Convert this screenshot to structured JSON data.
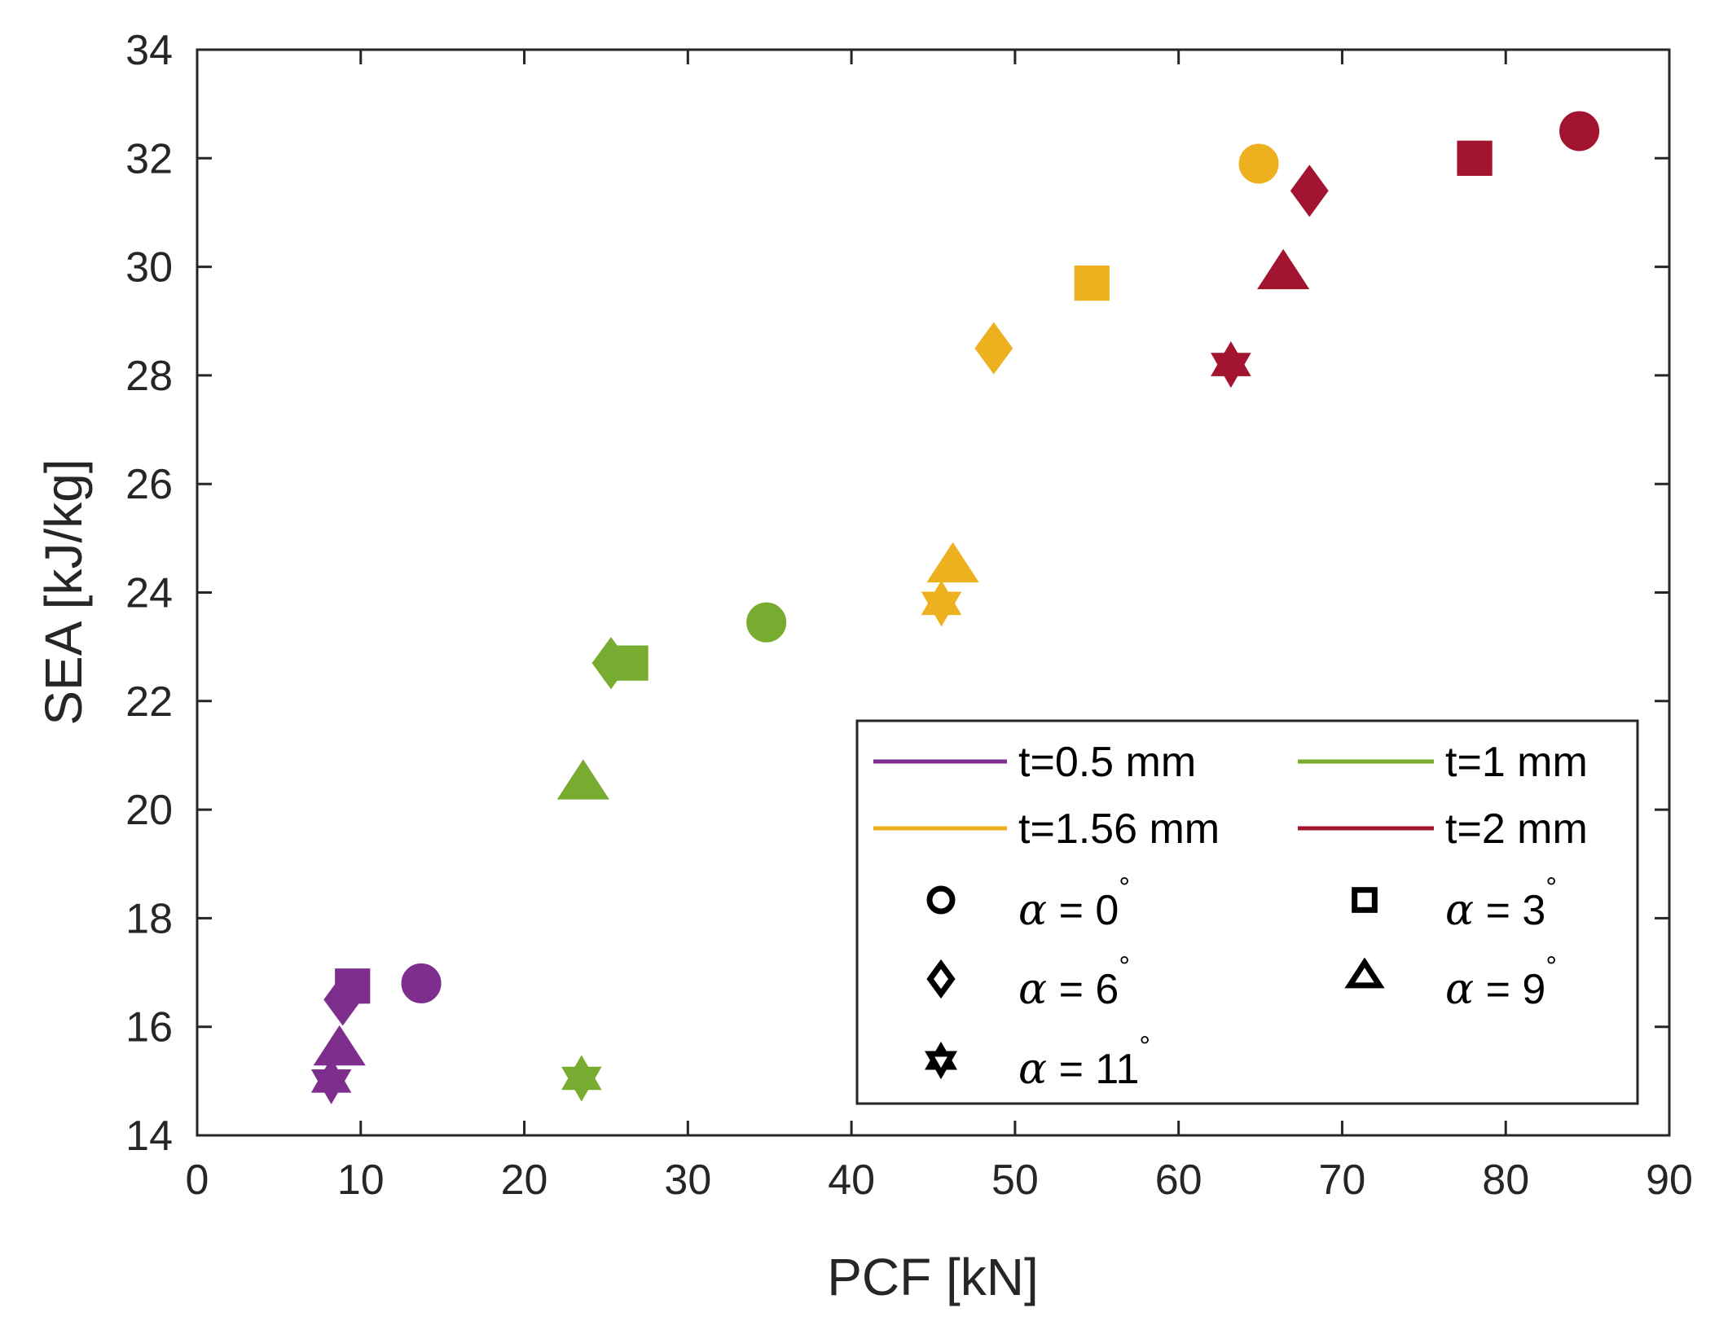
{
  "chart_data": {
    "type": "scatter",
    "xlabel": "PCF [kN]",
    "ylabel": "SEA [kJ/kg]",
    "xlim": [
      0,
      90
    ],
    "ylim": [
      14,
      34
    ],
    "xticks": [
      0,
      10,
      20,
      30,
      40,
      50,
      60,
      70,
      80,
      90
    ],
    "yticks": [
      14,
      16,
      18,
      20,
      22,
      24,
      26,
      28,
      30,
      32,
      34
    ],
    "grid": false,
    "legend_position": "bottom-right",
    "series": [
      {
        "name": "t=0.5 mm",
        "color": "#7E2F8E",
        "points": [
          {
            "alpha": 0,
            "marker": "circle",
            "x": 13.7,
            "y": 16.8
          },
          {
            "alpha": 3,
            "marker": "square",
            "x": 9.5,
            "y": 16.75
          },
          {
            "alpha": 6,
            "marker": "diamond",
            "x": 8.9,
            "y": 16.5
          },
          {
            "alpha": 9,
            "marker": "triangle",
            "x": 8.7,
            "y": 15.6
          },
          {
            "alpha": 11,
            "marker": "hexagram",
            "x": 8.2,
            "y": 15.0
          }
        ]
      },
      {
        "name": "t=1 mm",
        "color": "#77AC30",
        "points": [
          {
            "alpha": 0,
            "marker": "circle",
            "x": 34.8,
            "y": 23.45
          },
          {
            "alpha": 3,
            "marker": "square",
            "x": 26.5,
            "y": 22.7
          },
          {
            "alpha": 6,
            "marker": "diamond",
            "x": 25.3,
            "y": 22.7
          },
          {
            "alpha": 9,
            "marker": "triangle",
            "x": 23.6,
            "y": 20.5
          },
          {
            "alpha": 11,
            "marker": "hexagram",
            "x": 23.5,
            "y": 15.05
          }
        ]
      },
      {
        "name": "t=1.56 mm",
        "color": "#EDB120",
        "points": [
          {
            "alpha": 0,
            "marker": "circle",
            "x": 64.9,
            "y": 31.9
          },
          {
            "alpha": 3,
            "marker": "square",
            "x": 54.7,
            "y": 29.7
          },
          {
            "alpha": 6,
            "marker": "diamond",
            "x": 48.7,
            "y": 28.5
          },
          {
            "alpha": 9,
            "marker": "triangle",
            "x": 46.2,
            "y": 24.5
          },
          {
            "alpha": 11,
            "marker": "hexagram",
            "x": 45.5,
            "y": 23.8
          }
        ]
      },
      {
        "name": "t=2 mm",
        "color": "#A2142F",
        "points": [
          {
            "alpha": 0,
            "marker": "circle",
            "x": 84.5,
            "y": 32.5
          },
          {
            "alpha": 3,
            "marker": "square",
            "x": 78.1,
            "y": 32.0
          },
          {
            "alpha": 6,
            "marker": "diamond",
            "x": 68.0,
            "y": 31.4
          },
          {
            "alpha": 9,
            "marker": "triangle",
            "x": 66.4,
            "y": 29.9
          },
          {
            "alpha": 11,
            "marker": "hexagram",
            "x": 63.2,
            "y": 28.2
          }
        ]
      }
    ],
    "legend": {
      "thickness_entries": [
        "t=0.5 mm",
        "t=1 mm",
        "t=1.56 mm",
        "t=2 mm"
      ],
      "alpha_entries": [
        {
          "symbol": "α",
          "text": " = 0",
          "degree": "°",
          "marker": "circle"
        },
        {
          "symbol": "α",
          "text": " = 3",
          "degree": "°",
          "marker": "square"
        },
        {
          "symbol": "α",
          "text": " = 6",
          "degree": "°",
          "marker": "diamond"
        },
        {
          "symbol": "α",
          "text": " = 9",
          "degree": "°",
          "marker": "triangle"
        },
        {
          "symbol": "α",
          "text": " = 11",
          "degree": "°",
          "marker": "hexagram"
        }
      ]
    }
  }
}
